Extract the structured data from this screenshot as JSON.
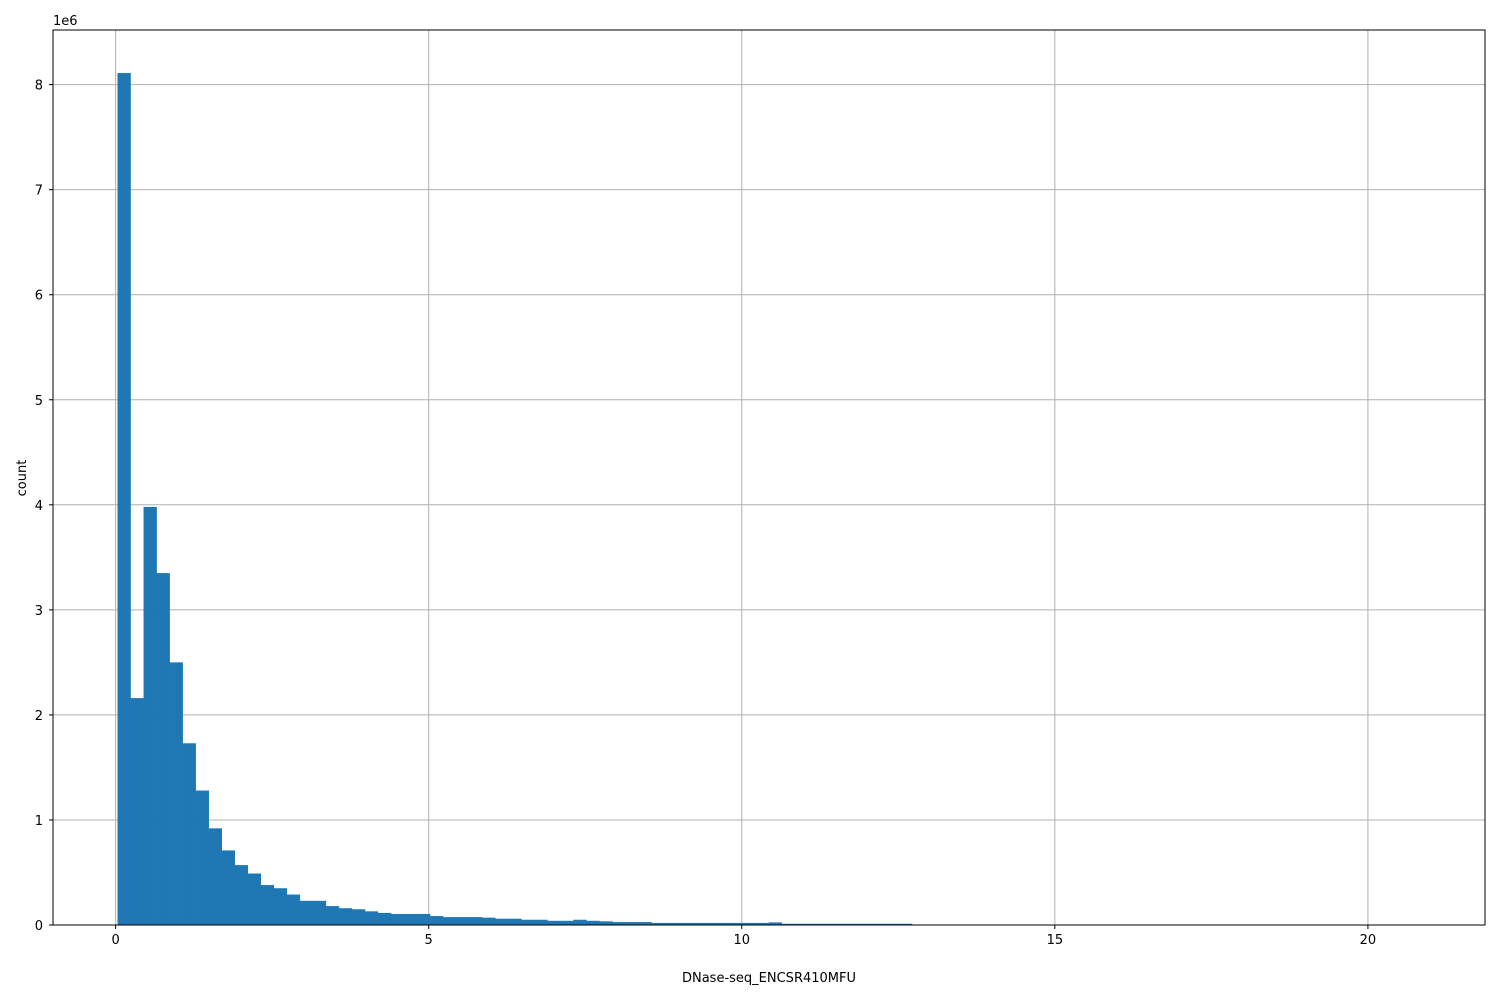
{
  "chart_data": {
    "type": "bar",
    "subtype": "histogram",
    "title": "",
    "xlabel": "DNase-seq_ENCSR410MFU",
    "ylabel": "count",
    "y_offset_label": "1e6",
    "bin_start": 0.03,
    "bin_width": 0.208,
    "xlim": [
      -1.0,
      21.87
    ],
    "ylim": [
      0,
      8520000
    ],
    "x_ticks": [
      "0",
      "5",
      "10",
      "15",
      "20"
    ],
    "x_tick_values": [
      0,
      5,
      10,
      15,
      20
    ],
    "y_ticks": [
      "0",
      "1",
      "2",
      "3",
      "4",
      "5",
      "6",
      "7",
      "8"
    ],
    "y_tick_values": [
      0,
      1000000,
      2000000,
      3000000,
      4000000,
      5000000,
      6000000,
      7000000,
      8000000
    ],
    "grid": true,
    "color": "#1f77b4",
    "values": [
      8110000,
      2160000,
      3980000,
      3350000,
      2500000,
      1730000,
      1280000,
      920000,
      710000,
      570000,
      490000,
      380000,
      350000,
      290000,
      230000,
      230000,
      180000,
      160000,
      150000,
      130000,
      115000,
      105000,
      105000,
      105000,
      85000,
      75000,
      75000,
      75000,
      70000,
      60000,
      60000,
      50000,
      50000,
      40000,
      40000,
      50000,
      40000,
      35000,
      28000,
      28000,
      28000,
      20000,
      20000,
      20000,
      20000,
      20000,
      20000,
      20000,
      20000,
      20000,
      25000,
      12000,
      12000,
      12000,
      12000,
      12000,
      12000,
      12000,
      12000,
      12000,
      12000,
      4000,
      4000,
      3000,
      3000,
      3000,
      3000,
      2000,
      2000,
      2000,
      2000,
      2000,
      1500,
      1500,
      1500,
      1500,
      1000,
      1000,
      1000,
      1000,
      1000,
      800,
      800,
      800,
      600,
      600,
      600,
      500,
      500,
      500,
      400,
      400,
      300,
      300,
      300,
      200,
      200,
      200,
      100,
      100
    ]
  }
}
